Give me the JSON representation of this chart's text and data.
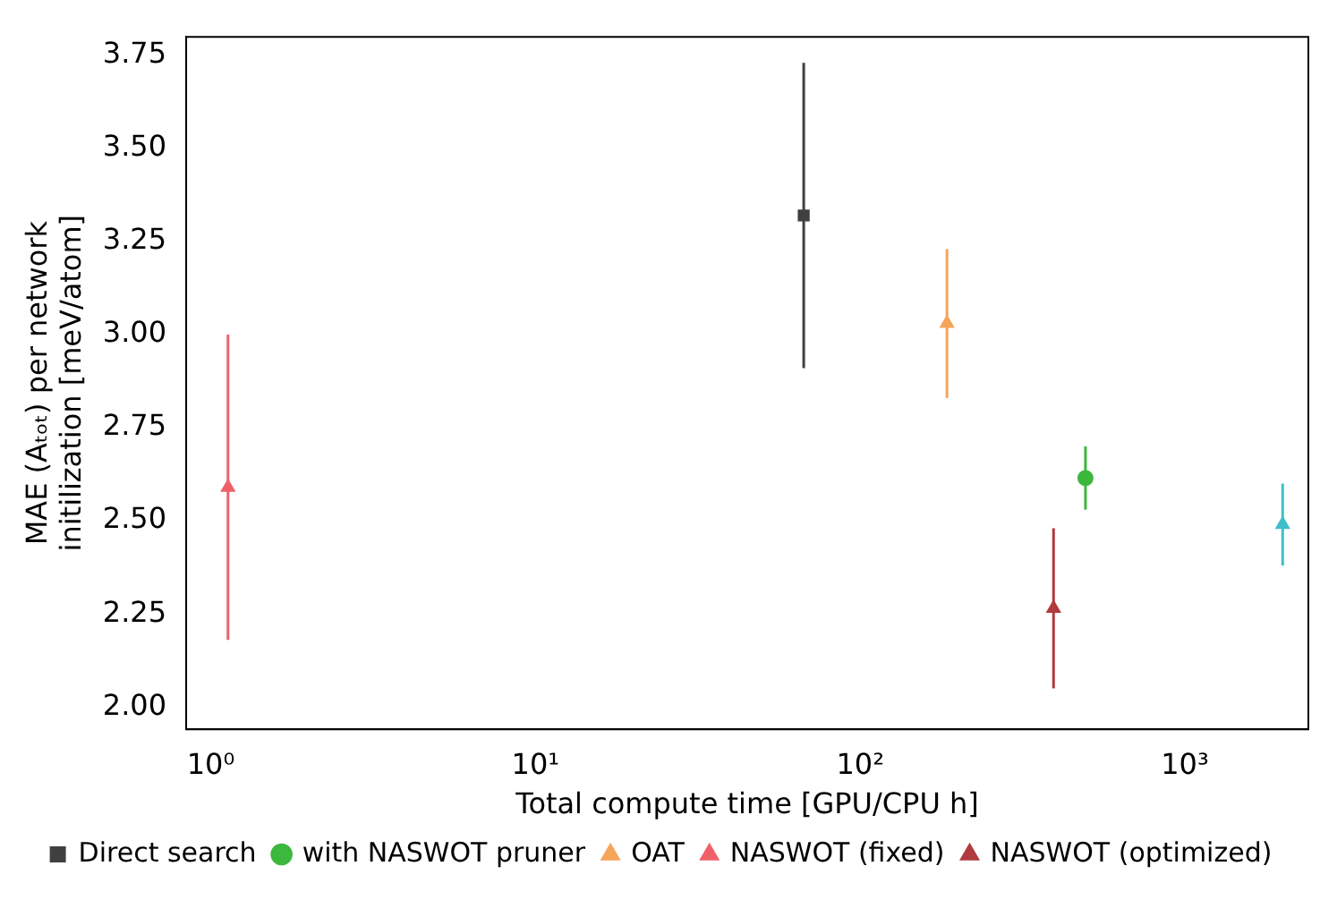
{
  "chart_data": {
    "type": "scatter",
    "xlabel": "Total compute time [GPU/CPU h]",
    "ylabel": "MAE (Aₜₒₜ) per network\ninitilization [meV/atom]",
    "log": "x",
    "xlim": [
      0.84,
      2400
    ],
    "xticks": [
      {
        "value": 1,
        "label": "10⁰"
      },
      {
        "value": 10,
        "label": "10¹"
      },
      {
        "value": 100,
        "label": "10²"
      },
      {
        "value": 1000,
        "label": "10³"
      }
    ],
    "ylim": [
      1.94,
      3.8
    ],
    "yticks": [
      {
        "value": 2,
        "label": "2.00"
      },
      {
        "value": 2.25,
        "label": "2.25"
      },
      {
        "value": 2.5,
        "label": "2.50"
      },
      {
        "value": 2.75,
        "label": "2.75"
      },
      {
        "value": 3,
        "label": "3.00"
      },
      {
        "value": 3.25,
        "label": "3.25"
      },
      {
        "value": 3.5,
        "label": "3.50"
      },
      {
        "value": 3.75,
        "label": "3.75"
      }
    ],
    "grid": false,
    "legend": "bottom",
    "series": [
      {
        "name": "Direct search",
        "color": "#404040",
        "marker": "square",
        "x": [
          67
        ],
        "values": [
          3.32
        ],
        "errors": [
          [
            2.91,
            3.73
          ]
        ]
      },
      {
        "color": "#3fbfcb",
        "marker": "triangle",
        "x": [
          2000
        ],
        "values": [
          2.49
        ],
        "errors": [
          [
            2.38,
            2.6
          ]
        ]
      },
      {
        "name": "with NASWOT pruner",
        "color": "#3cb83c",
        "marker": "circle",
        "x": [
          494
        ],
        "values": [
          2.615
        ],
        "errors": [
          [
            2.53,
            2.7
          ]
        ]
      },
      {
        "name": "OAT",
        "color": "#f5a55a",
        "marker": "triangle",
        "x": [
          185
        ],
        "values": [
          3.03
        ],
        "errors": [
          [
            2.83,
            3.23
          ]
        ]
      },
      {
        "name": "NASWOT (fixed)",
        "color": "#f0606a",
        "marker": "triangle",
        "x": [
          1.13
        ],
        "values": [
          2.59
        ],
        "errors": [
          [
            2.18,
            3.0
          ]
        ]
      },
      {
        "name": "NASWOT (optimized)",
        "color": "#b03a3e",
        "marker": "triangle",
        "x": [
          394
        ],
        "values": [
          2.265
        ],
        "errors": [
          [
            2.05,
            2.48
          ]
        ]
      }
    ]
  }
}
